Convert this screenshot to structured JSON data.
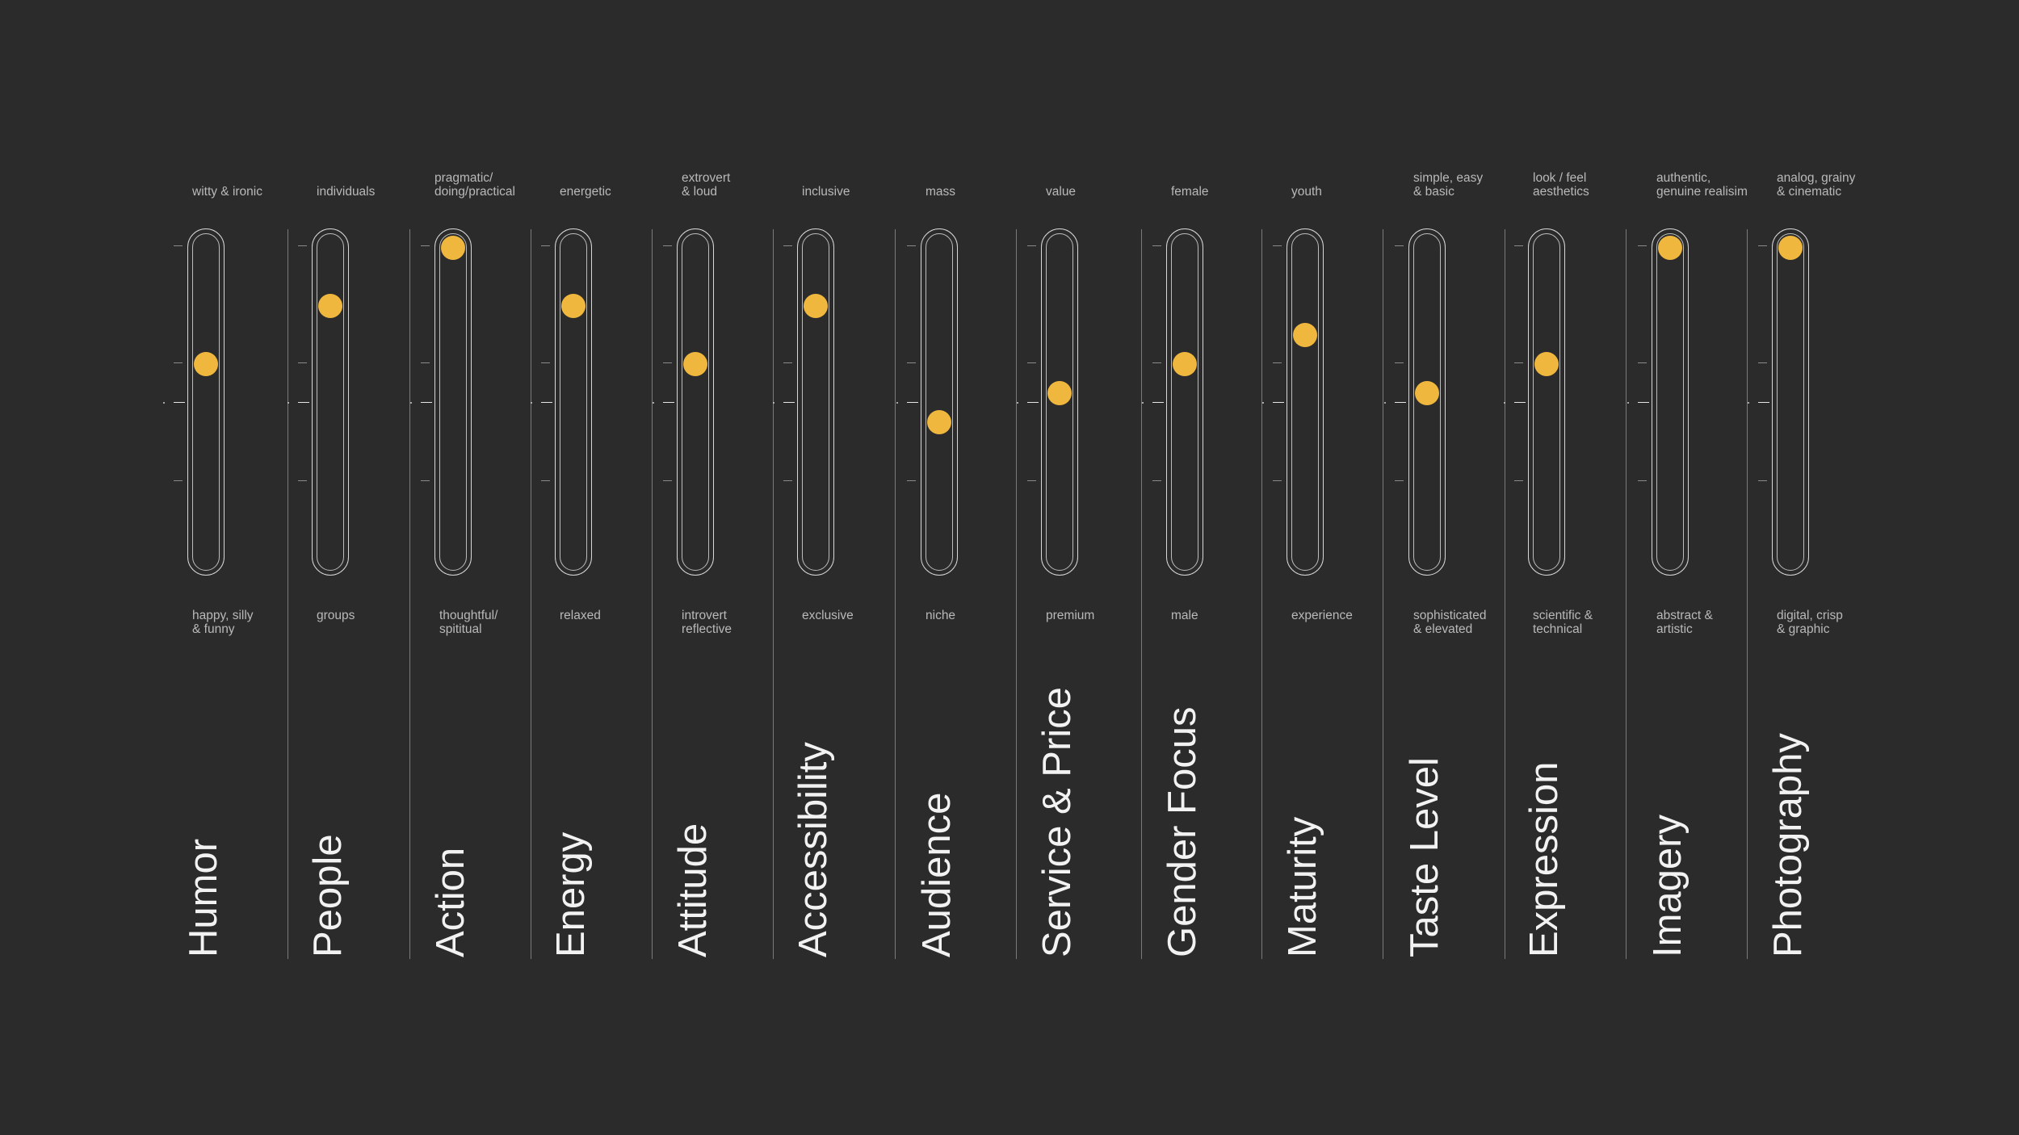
{
  "colors": {
    "background": "#2b2b2b",
    "knob": "#efb73e",
    "track": "#d8d8d8",
    "divider": "#7a7a7a",
    "text": "#b9b9b9",
    "title": "#f2f2f2"
  },
  "scales": [
    {
      "title": "Humor",
      "top": "witty & ironic",
      "bottom": "happy,  silly\n& funny",
      "value": 0.5
    },
    {
      "title": "People",
      "top": "individuals",
      "bottom": "groups",
      "value": 0.75
    },
    {
      "title": "Action",
      "top": "pragmatic/\ndoing/practical",
      "bottom": "thoughtful/\nspititual",
      "value": 1.0
    },
    {
      "title": "Energy",
      "top": "energetic",
      "bottom": "relaxed",
      "value": 0.75
    },
    {
      "title": "Attitude",
      "top": "extrovert\n& loud",
      "bottom": "introvert\nreflective",
      "value": 0.5
    },
    {
      "title": "Accessibility",
      "top": "inclusive",
      "bottom": "exclusive",
      "value": 0.75
    },
    {
      "title": "Audience",
      "top": "mass",
      "bottom": "niche",
      "value": 0.25
    },
    {
      "title": "Service & Price",
      "top": "value",
      "bottom": "premium",
      "value": 0.375
    },
    {
      "title": "Gender Focus",
      "top": "female",
      "bottom": "male",
      "value": 0.5
    },
    {
      "title": "Maturity",
      "top": "youth",
      "bottom": "experience",
      "value": 0.625
    },
    {
      "title": "Taste Level",
      "top": "simple, easy\n & basic",
      "bottom": "sophisticated\n& elevated",
      "value": 0.375
    },
    {
      "title": "Expression",
      "top": "look / feel\naesthetics",
      "bottom": "scientific &\ntechnical",
      "value": 0.5
    },
    {
      "title": "Imagery",
      "top": "authentic,\ngenuine realisim",
      "bottom": "abstract &\nartistic",
      "value": 1.0
    },
    {
      "title": "Photography",
      "top": "analog, grainy\n& cinematic",
      "bottom": "digital, crisp\n& graphic",
      "value": 1.0
    }
  ]
}
